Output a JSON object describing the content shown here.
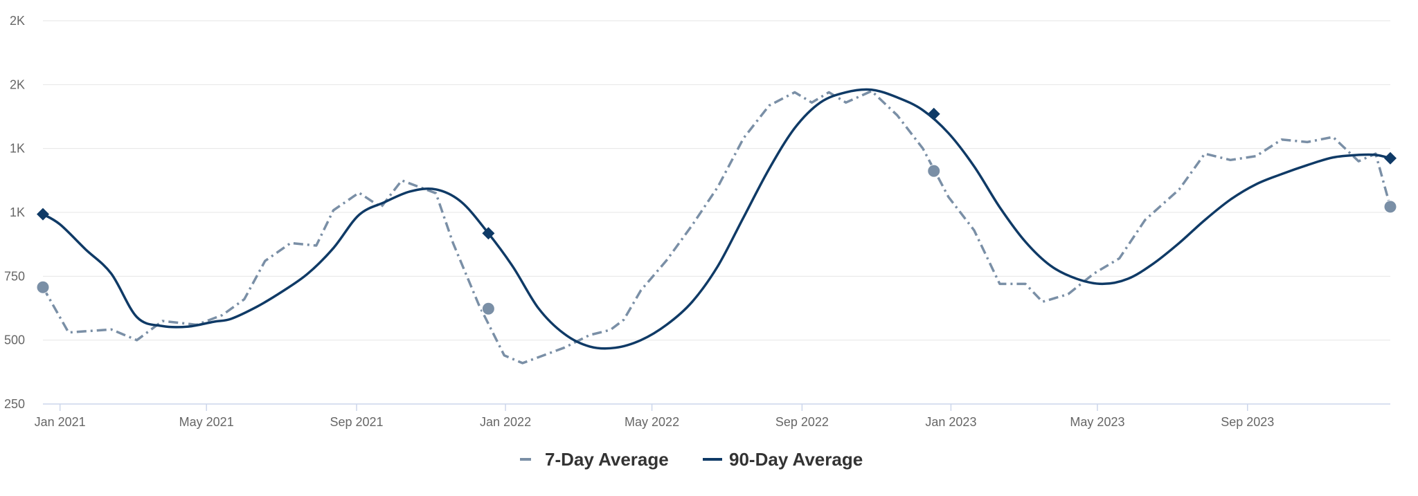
{
  "chart_data": {
    "type": "line",
    "title": "",
    "xlabel": "",
    "ylabel": "",
    "y_tick_labels": [
      "250",
      "500",
      "750",
      "1K",
      "1K",
      "2K",
      "2K"
    ],
    "y_tick_values": [
      250,
      500,
      750,
      1000,
      1250,
      1500,
      1750
    ],
    "ylim": [
      250,
      1750
    ],
    "x_tick_labels": [
      "Jan 2021",
      "May 2021",
      "Sep 2021",
      "Jan 2022",
      "May 2022",
      "Sep 2022",
      "Jan 2023",
      "May 2023",
      "Sep 2023"
    ],
    "x_tick_values": [
      "2021-01-01",
      "2021-05-01",
      "2021-09-01",
      "2022-01-01",
      "2022-05-01",
      "2022-09-01",
      "2023-01-01",
      "2023-05-01",
      "2023-09-01"
    ],
    "xlim": [
      "2020-12-18",
      "2023-12-27"
    ],
    "grid": true,
    "legend_position": "bottom-center",
    "colors": {
      "seven_day": "#7a8fa6",
      "ninety_day": "#0f3a66",
      "axis": "#ccd6eb",
      "grid": "#e6e6e6"
    },
    "series": [
      {
        "name": "7-Day Average",
        "style": "dashed",
        "marker": "circle",
        "highlighted_points": [
          {
            "x": "2020-12-18",
            "y": 707
          },
          {
            "x": "2021-12-18",
            "y": 623
          },
          {
            "x": "2022-12-18",
            "y": 1162
          },
          {
            "x": "2023-12-27",
            "y": 1022
          }
        ],
        "points": [
          {
            "x": "2020-12-18",
            "y": 707
          },
          {
            "x": "2021-01-08",
            "y": 530
          },
          {
            "x": "2021-02-12",
            "y": 542
          },
          {
            "x": "2021-03-05",
            "y": 500
          },
          {
            "x": "2021-03-26",
            "y": 575
          },
          {
            "x": "2021-04-23",
            "y": 560
          },
          {
            "x": "2021-05-14",
            "y": 598
          },
          {
            "x": "2021-06-01",
            "y": 660
          },
          {
            "x": "2021-06-18",
            "y": 810
          },
          {
            "x": "2021-07-09",
            "y": 880
          },
          {
            "x": "2021-07-30",
            "y": 870
          },
          {
            "x": "2021-08-13",
            "y": 1008
          },
          {
            "x": "2021-09-03",
            "y": 1077
          },
          {
            "x": "2021-09-21",
            "y": 1020
          },
          {
            "x": "2021-10-08",
            "y": 1125
          },
          {
            "x": "2021-10-22",
            "y": 1100
          },
          {
            "x": "2021-11-05",
            "y": 1075
          },
          {
            "x": "2021-11-19",
            "y": 880
          },
          {
            "x": "2021-12-10",
            "y": 640
          },
          {
            "x": "2021-12-31",
            "y": 440
          },
          {
            "x": "2022-01-15",
            "y": 410
          },
          {
            "x": "2022-02-18",
            "y": 470
          },
          {
            "x": "2022-03-11",
            "y": 520
          },
          {
            "x": "2022-03-28",
            "y": 540
          },
          {
            "x": "2022-04-08",
            "y": 580
          },
          {
            "x": "2022-04-22",
            "y": 695
          },
          {
            "x": "2022-05-13",
            "y": 812
          },
          {
            "x": "2022-06-03",
            "y": 950
          },
          {
            "x": "2022-06-24",
            "y": 1100
          },
          {
            "x": "2022-07-15",
            "y": 1290
          },
          {
            "x": "2022-08-05",
            "y": 1418
          },
          {
            "x": "2022-08-26",
            "y": 1470
          },
          {
            "x": "2022-09-09",
            "y": 1430
          },
          {
            "x": "2022-09-23",
            "y": 1470
          },
          {
            "x": "2022-10-07",
            "y": 1430
          },
          {
            "x": "2022-10-28",
            "y": 1475
          },
          {
            "x": "2022-11-18",
            "y": 1380
          },
          {
            "x": "2022-12-09",
            "y": 1250
          },
          {
            "x": "2022-12-30",
            "y": 1060
          },
          {
            "x": "2023-01-20",
            "y": 930
          },
          {
            "x": "2023-02-10",
            "y": 720
          },
          {
            "x": "2023-03-03",
            "y": 720
          },
          {
            "x": "2023-03-17",
            "y": 650
          },
          {
            "x": "2023-04-07",
            "y": 680
          },
          {
            "x": "2023-04-28",
            "y": 760
          },
          {
            "x": "2023-05-19",
            "y": 820
          },
          {
            "x": "2023-06-09",
            "y": 970
          },
          {
            "x": "2023-07-07",
            "y": 1090
          },
          {
            "x": "2023-07-28",
            "y": 1230
          },
          {
            "x": "2023-08-18",
            "y": 1205
          },
          {
            "x": "2023-09-08",
            "y": 1220
          },
          {
            "x": "2023-09-29",
            "y": 1285
          },
          {
            "x": "2023-10-20",
            "y": 1275
          },
          {
            "x": "2023-11-10",
            "y": 1295
          },
          {
            "x": "2023-12-01",
            "y": 1200
          },
          {
            "x": "2023-12-15",
            "y": 1230
          },
          {
            "x": "2023-12-27",
            "y": 1022
          }
        ]
      },
      {
        "name": "90-Day Average",
        "style": "solid",
        "marker": "diamond",
        "highlighted_points": [
          {
            "x": "2020-12-18",
            "y": 993
          },
          {
            "x": "2021-12-18",
            "y": 918
          },
          {
            "x": "2022-12-18",
            "y": 1385
          },
          {
            "x": "2023-12-27",
            "y": 1212
          }
        ],
        "points": [
          {
            "x": "2020-12-18",
            "y": 993
          },
          {
            "x": "2021-01-01",
            "y": 953
          },
          {
            "x": "2021-01-22",
            "y": 855
          },
          {
            "x": "2021-02-12",
            "y": 760
          },
          {
            "x": "2021-03-05",
            "y": 590
          },
          {
            "x": "2021-03-26",
            "y": 555
          },
          {
            "x": "2021-04-16",
            "y": 553
          },
          {
            "x": "2021-05-07",
            "y": 572
          },
          {
            "x": "2021-05-21",
            "y": 583
          },
          {
            "x": "2021-06-11",
            "y": 630
          },
          {
            "x": "2021-07-02",
            "y": 690
          },
          {
            "x": "2021-07-23",
            "y": 760
          },
          {
            "x": "2021-08-13",
            "y": 860
          },
          {
            "x": "2021-09-03",
            "y": 990
          },
          {
            "x": "2021-09-24",
            "y": 1040
          },
          {
            "x": "2021-10-15",
            "y": 1082
          },
          {
            "x": "2021-11-05",
            "y": 1090
          },
          {
            "x": "2021-11-26",
            "y": 1040
          },
          {
            "x": "2021-12-18",
            "y": 918
          },
          {
            "x": "2022-01-07",
            "y": 788
          },
          {
            "x": "2022-01-28",
            "y": 625
          },
          {
            "x": "2022-02-18",
            "y": 525
          },
          {
            "x": "2022-03-11",
            "y": 475
          },
          {
            "x": "2022-04-01",
            "y": 470
          },
          {
            "x": "2022-04-22",
            "y": 500
          },
          {
            "x": "2022-05-13",
            "y": 560
          },
          {
            "x": "2022-06-03",
            "y": 650
          },
          {
            "x": "2022-06-24",
            "y": 790
          },
          {
            "x": "2022-07-15",
            "y": 980
          },
          {
            "x": "2022-08-05",
            "y": 1170
          },
          {
            "x": "2022-08-26",
            "y": 1330
          },
          {
            "x": "2022-09-16",
            "y": 1430
          },
          {
            "x": "2022-10-07",
            "y": 1470
          },
          {
            "x": "2022-10-28",
            "y": 1480
          },
          {
            "x": "2022-11-18",
            "y": 1450
          },
          {
            "x": "2022-12-09",
            "y": 1400
          },
          {
            "x": "2022-12-30",
            "y": 1310
          },
          {
            "x": "2023-01-20",
            "y": 1180
          },
          {
            "x": "2023-02-10",
            "y": 1020
          },
          {
            "x": "2023-03-03",
            "y": 885
          },
          {
            "x": "2023-03-24",
            "y": 790
          },
          {
            "x": "2023-04-14",
            "y": 740
          },
          {
            "x": "2023-05-05",
            "y": 720
          },
          {
            "x": "2023-05-26",
            "y": 740
          },
          {
            "x": "2023-06-16",
            "y": 800
          },
          {
            "x": "2023-07-07",
            "y": 880
          },
          {
            "x": "2023-07-28",
            "y": 970
          },
          {
            "x": "2023-08-18",
            "y": 1050
          },
          {
            "x": "2023-09-08",
            "y": 1110
          },
          {
            "x": "2023-09-29",
            "y": 1150
          },
          {
            "x": "2023-10-20",
            "y": 1185
          },
          {
            "x": "2023-11-10",
            "y": 1215
          },
          {
            "x": "2023-12-01",
            "y": 1225
          },
          {
            "x": "2023-12-15",
            "y": 1225
          },
          {
            "x": "2023-12-27",
            "y": 1212
          }
        ]
      }
    ]
  }
}
